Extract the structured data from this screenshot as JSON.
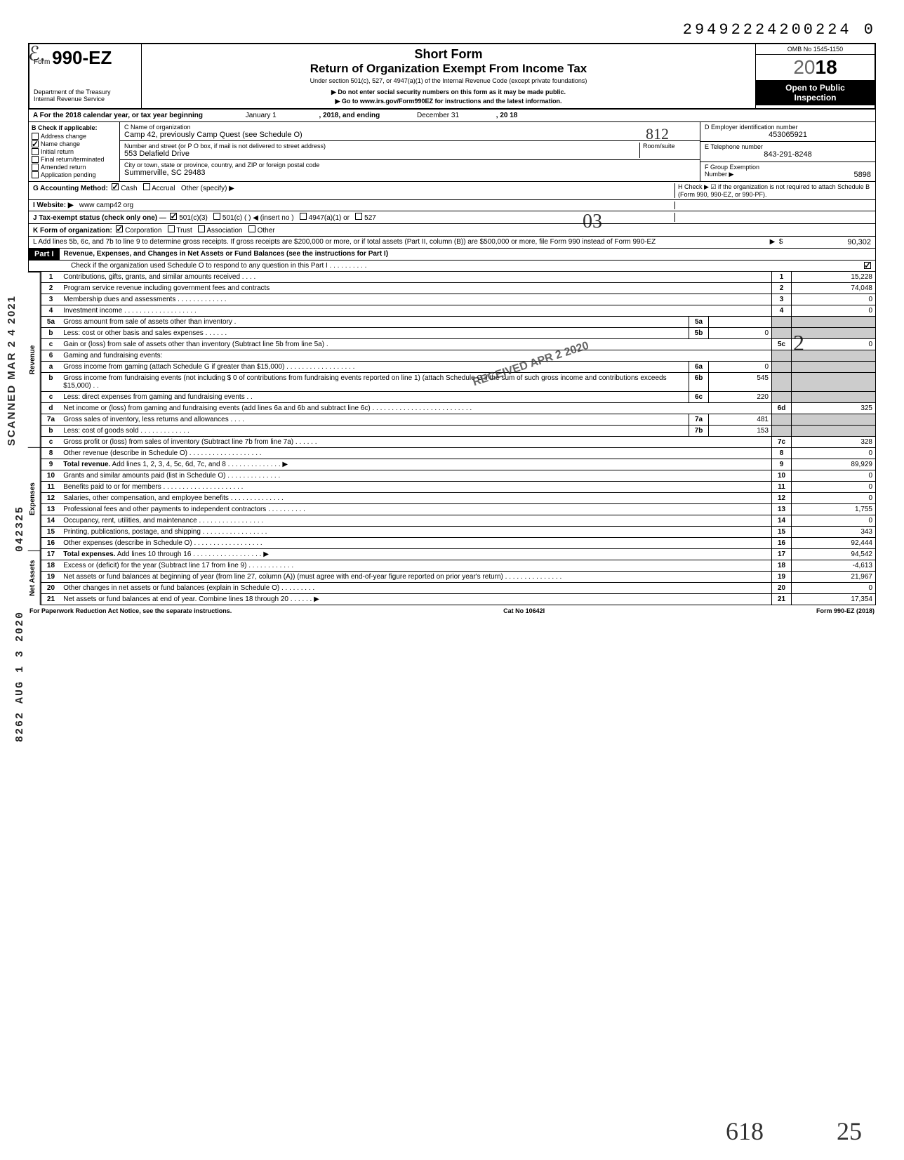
{
  "dln": "29492224200224  0",
  "header": {
    "form_prefix": "Form",
    "form_number": "990-EZ",
    "dept": "Department of the Treasury",
    "irs": "Internal Revenue Service",
    "title1": "Short Form",
    "title2": "Return of Organization Exempt From Income Tax",
    "subtitle": "Under section 501(c), 527, or 4947(a)(1) of the Internal Revenue Code (except private foundations)",
    "note1": "▶ Do not enter social security numbers on this form as it may be made public.",
    "note2": "▶ Go to www.irs.gov/Form990EZ for instructions and the latest information.",
    "omb": "OMB No 1545-1150",
    "year_light": "20",
    "year_bold": "18",
    "open1": "Open to Public",
    "open2": "Inspection"
  },
  "rowA": {
    "text_a": "A For the 2018 calendar year, or tax year beginning",
    "begin": "January 1",
    "mid": ", 2018, and ending",
    "end": "December 31",
    "year_suffix": ", 20   18"
  },
  "colB": {
    "header": "B Check if applicable:",
    "items": [
      {
        "label": "Address change",
        "checked": false
      },
      {
        "label": "Name change",
        "checked": true
      },
      {
        "label": "Initial return",
        "checked": false
      },
      {
        "label": "Final return/terminated",
        "checked": false
      },
      {
        "label": "Amended return",
        "checked": false
      },
      {
        "label": "Application pending",
        "checked": false
      }
    ]
  },
  "colC": {
    "name_label": "C  Name of organization",
    "name": "Camp 42, previously Camp Quest (see Schedule O)",
    "addr_label": "Number and street (or P O  box, if mail is not delivered to street address)",
    "addr": "553 Delafield Drive",
    "roomsuite_label": "Room/suite",
    "roomsuite": "",
    "city_label": "City or town, state or province, country, and ZIP or foreign postal code",
    "city": "Summerville, SC 29483"
  },
  "colRight": {
    "d_label": "D Employer identification number",
    "d_value": "453065921",
    "e_label": "E Telephone number",
    "e_value": "843-291-8248",
    "f_label": "F Group Exemption",
    "f_label2": "Number ▶",
    "f_value": "5898"
  },
  "below": {
    "g_label": "G Accounting Method:",
    "g_cash": "Cash",
    "g_accrual": "Accrual",
    "g_other": "Other (specify) ▶",
    "h_text": "H Check ▶ ☑ if the organization is not required to attach Schedule B (Form 990, 990-EZ, or 990-PF).",
    "i_label": "I  Website: ▶",
    "i_value": "www camp42 org",
    "j_label": "J Tax-exempt status (check only one) —",
    "j_501c3": "501(c)(3)",
    "j_501c": "501(c) (          ) ◀ (insert no )",
    "j_4947": "4947(a)(1) or",
    "j_527": "527",
    "k_label": "K Form of organization:",
    "k_corp": "Corporation",
    "k_trust": "Trust",
    "k_assoc": "Association",
    "k_other": "Other",
    "l_text": "L Add lines 5b, 6c, and 7b to line 9 to determine gross receipts. If gross receipts are $200,000 or more, or if total assets (Part II, column (B)) are $500,000 or more, file Form 990 instead of Form 990-EZ",
    "l_value": "90,302"
  },
  "part1": {
    "label": "Part I",
    "title": "Revenue, Expenses, and Changes in Net Assets or Fund Balances (see the instructions for Part I)",
    "check_text": "Check if the organization used Schedule O to respond to any question in this Part I  .  .  .  .  .  .  .  .  .  .",
    "check_checked": true
  },
  "side_labels": {
    "revenue": "Revenue",
    "expenses": "Expenses",
    "netassets": "Net Assets"
  },
  "lines": [
    {
      "no": "1",
      "desc": "Contributions, gifts, grants, and similar amounts received  .   .   .   .",
      "col": "1",
      "val": "15,228"
    },
    {
      "no": "2",
      "desc": "Program service revenue including government fees and contracts",
      "col": "2",
      "val": "74,048"
    },
    {
      "no": "3",
      "desc": "Membership dues and assessments  .   .   .   .   .   .   .   .   .   .   .   .   .",
      "col": "3",
      "val": "0"
    },
    {
      "no": "4",
      "desc": "Investment income   .   .   .   .   .   .   .   .   .   .   .   .   .   .   .   .   .   .   .",
      "col": "4",
      "val": "0"
    },
    {
      "no": "5a",
      "desc": "Gross amount from sale of assets other than inventory   .",
      "subno": "5a",
      "subval": "",
      "shade": true
    },
    {
      "no": "b",
      "desc": "Less: cost or other basis and sales expenses .   .   .   .   .   .",
      "subno": "5b",
      "subval": "0",
      "shade": true
    },
    {
      "no": "c",
      "desc": "Gain or (loss) from sale of assets other than inventory (Subtract line 5b from line 5a)  .",
      "col": "5c",
      "val": "0"
    },
    {
      "no": "6",
      "desc": "Gaming and fundraising events:",
      "shade": true
    },
    {
      "no": "a",
      "desc": "Gross income from gaming (attach Schedule G if greater than $15,000)  .   .   .   .   .   .   .   .   .   .   .   .   .   .   .   .   .   .",
      "subno": "6a",
      "subval": "0",
      "shade": true
    },
    {
      "no": "b",
      "desc": "Gross income from fundraising events (not including  $                  0 of contributions from fundraising events reported on line 1) (attach Schedule G if the sum of such gross income and contributions exceeds $15,000) .  .",
      "subno": "6b",
      "subval": "545",
      "shade": true
    },
    {
      "no": "c",
      "desc": "Less: direct expenses from gaming and fundraising events   .   .",
      "subno": "6c",
      "subval": "220",
      "shade": true
    },
    {
      "no": "d",
      "desc": "Net income or (loss) from gaming and fundraising events (add lines 6a and 6b and subtract line 6c)   .   .   .   .   .   .   .   .   .   .   .   .   .   .   .   .   .   .   .   .   .   .   .   .   .   .",
      "col": "6d",
      "val": "325"
    },
    {
      "no": "7a",
      "desc": "Gross sales of inventory, less returns and allowances  .   .   .   .",
      "subno": "7a",
      "subval": "481",
      "shade": true
    },
    {
      "no": "b",
      "desc": "Less: cost of goods sold     .   .   .   .   .   .   .   .   .   .   .   .   .",
      "subno": "7b",
      "subval": "153",
      "shade": true
    },
    {
      "no": "c",
      "desc": "Gross profit or (loss) from sales of inventory (Subtract line 7b from line 7a)  .   .   .   .   .   .",
      "col": "7c",
      "val": "328"
    },
    {
      "no": "8",
      "desc": "Other revenue (describe in Schedule O) .   .   .   .   .   .   .   .   .   .   .   .   .   .   .   .   .   .   .",
      "col": "8",
      "val": "0"
    },
    {
      "no": "9",
      "desc_bold": "Total revenue.",
      "desc": " Add lines 1, 2, 3, 4, 5c, 6d, 7c, and 8   .   .   .   .   .   .   .   .   .   .   .   .   .   . ▶",
      "col": "9",
      "val": "89,929"
    },
    {
      "no": "10",
      "desc": "Grants and similar amounts paid (list in Schedule O)   .   .   .   .   .   .   .   .   .   .   .   .   .   .",
      "col": "10",
      "val": "0"
    },
    {
      "no": "11",
      "desc": "Benefits paid to or for members   .   .   .   .   .   .   .   .   .   .   .   .   .   .   .   .   .   .   .   .   .",
      "col": "11",
      "val": "0"
    },
    {
      "no": "12",
      "desc": "Salaries, other compensation, and employee benefits  .   .   .   .   .   .   .   .   .   .   .   .   .   .",
      "col": "12",
      "val": "0"
    },
    {
      "no": "13",
      "desc": "Professional fees and other payments to independent contractors .   .   .   .   .   .   .   .   .   .",
      "col": "13",
      "val": "1,755"
    },
    {
      "no": "14",
      "desc": "Occupancy, rent, utilities, and maintenance   .   .   .   .   .   .   .   .   .   .   .   .   .   .   .   .   .",
      "col": "14",
      "val": "0"
    },
    {
      "no": "15",
      "desc": "Printing, publications, postage, and shipping .   .   .   .   .   .   .   .   .   .   .   .   .   .   .   .   .",
      "col": "15",
      "val": "343"
    },
    {
      "no": "16",
      "desc": "Other expenses (describe in Schedule O)  .   .   .   .   .   .   .   .   .   .   .   .   .   .   .   .   .   .",
      "col": "16",
      "val": "92,444"
    },
    {
      "no": "17",
      "desc_bold": "Total expenses.",
      "desc": " Add lines 10 through 16  .   .   .   .   .   .   .   .   .   .   .   .   .   .   .   .   .   . ▶",
      "col": "17",
      "val": "94,542"
    },
    {
      "no": "18",
      "desc": "Excess or (deficit) for the year (Subtract line 17 from line 9)  .   .   .   .   .   .   .   .   .   .   .   .",
      "col": "18",
      "val": "-4,613"
    },
    {
      "no": "19",
      "desc": "Net assets or fund balances at beginning of year (from line 27, column (A)) (must agree with end-of-year figure reported on prior year's return)   .   .   .   .   .   .   .   .   .   .   .   .   .   .   .",
      "col": "19",
      "val": "21,967"
    },
    {
      "no": "20",
      "desc": "Other changes in net assets or fund balances (explain in Schedule O) .   .   .   .   .   .   .   .   .",
      "col": "20",
      "val": "0"
    },
    {
      "no": "21",
      "desc": "Net assets or fund balances at end of year. Combine lines 18 through 20   .   .   .   .   .   . ▶",
      "col": "21",
      "val": "17,354"
    }
  ],
  "footer": {
    "left": "For Paperwork Reduction Act Notice, see the separate instructions.",
    "mid": "Cat No  10642I",
    "right": "Form 990-EZ (2018)"
  },
  "stamps": {
    "scanned": "SCANNED MAR 2 4 2021",
    "routing1": "042325",
    "routing2": "8262 AUG 1 3 2020",
    "received": "RECEIVED APR 2 2020",
    "hand_03": "03",
    "hand_812": "812",
    "hand_618": "618",
    "hand_25": "25",
    "hand_2": "2"
  }
}
